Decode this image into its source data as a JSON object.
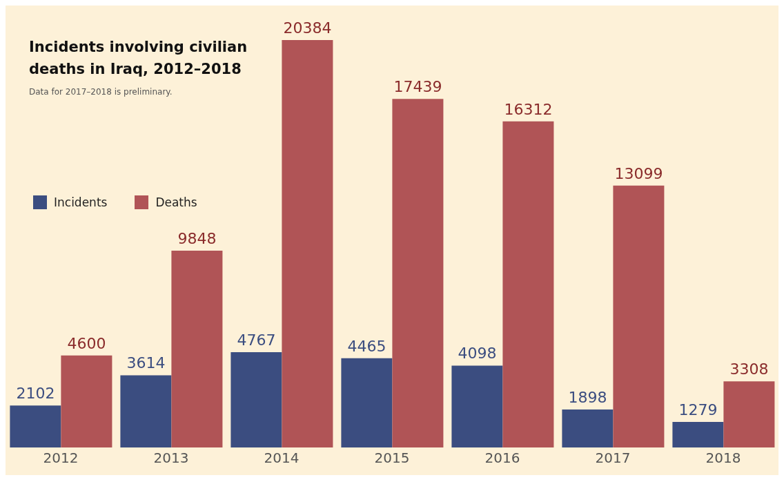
{
  "chart_data": {
    "type": "bar",
    "title": "Incidents involving civilian deaths in Iraq, 2012–2018",
    "annotations": [
      "Data for 2017–2018 is preliminary."
    ],
    "categories": [
      "2012",
      "2013",
      "2014",
      "2015",
      "2016",
      "2017",
      "2018"
    ],
    "series": [
      {
        "name": "Incidents",
        "color": "#3b4d80",
        "values": [
          2102,
          3614,
          4767,
          4465,
          4098,
          1898,
          1279
        ]
      },
      {
        "name": "Deaths",
        "color": "#b05456",
        "values": [
          4600,
          9848,
          20384,
          17439,
          16312,
          13099,
          3308
        ]
      }
    ],
    "data_labels": true,
    "legend": "left",
    "grid": false
  }
}
